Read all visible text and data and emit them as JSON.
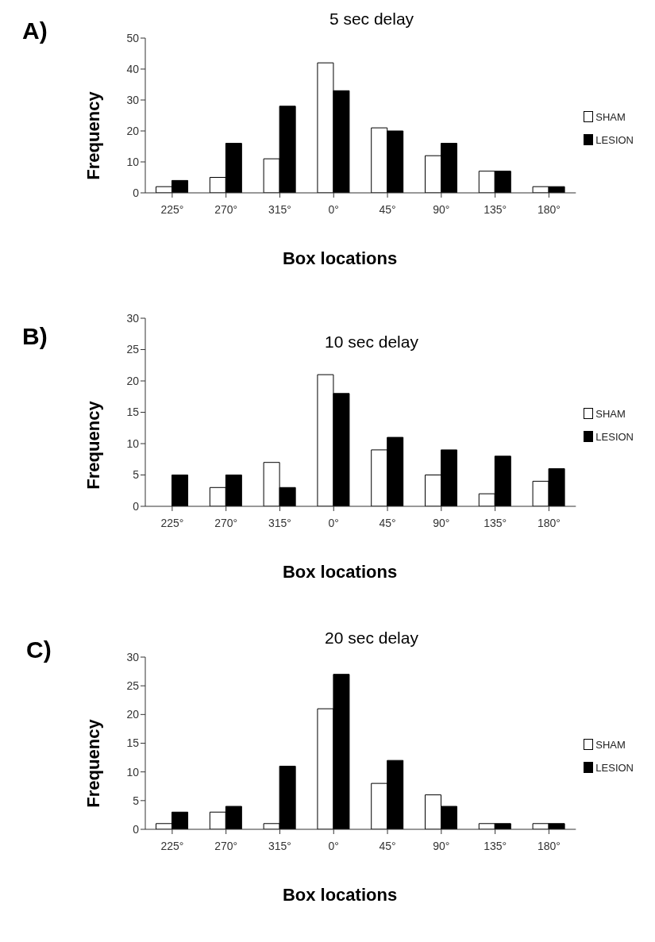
{
  "chart_data": [
    {
      "type": "bar",
      "title": "5 sec delay",
      "xlabel": "Box locations",
      "ylabel": "Frequency",
      "annotations": [
        "A)"
      ],
      "categories": [
        "225°",
        "270°",
        "315°",
        "0°",
        "45°",
        "90°",
        "135°",
        "180°"
      ],
      "series": [
        {
          "name": "SHAM",
          "color": "#ffffff",
          "values": [
            2,
            5,
            11,
            42,
            21,
            12,
            7,
            2
          ]
        },
        {
          "name": "LESION",
          "color": "#000000",
          "values": [
            4,
            16,
            28,
            33,
            20,
            16,
            7,
            2
          ]
        }
      ],
      "ylim": [
        0,
        50
      ],
      "yticks": [
        0,
        10,
        20,
        30,
        40,
        50
      ],
      "grid": false,
      "legend": "right"
    },
    {
      "type": "bar",
      "title": "10 sec delay",
      "xlabel": "Box locations",
      "ylabel": "Frequency",
      "annotations": [
        "B)"
      ],
      "categories": [
        "225°",
        "270°",
        "315°",
        "0°",
        "45°",
        "90°",
        "135°",
        "180°"
      ],
      "series": [
        {
          "name": "SHAM",
          "color": "#ffffff",
          "values": [
            0,
            3,
            7,
            21,
            9,
            5,
            2,
            4
          ]
        },
        {
          "name": "LESION",
          "color": "#000000",
          "values": [
            5,
            5,
            3,
            18,
            11,
            9,
            8,
            6
          ]
        }
      ],
      "ylim": [
        0,
        30
      ],
      "yticks": [
        0,
        5,
        10,
        15,
        20,
        25,
        30
      ],
      "grid": false,
      "legend": "right"
    },
    {
      "type": "bar",
      "title": "20 sec delay",
      "xlabel": "Box locations",
      "ylabel": "Frequency",
      "annotations": [
        "C)"
      ],
      "categories": [
        "225°",
        "270°",
        "315°",
        "0°",
        "45°",
        "90°",
        "135°",
        "180°"
      ],
      "series": [
        {
          "name": "SHAM",
          "color": "#ffffff",
          "values": [
            1,
            3,
            1,
            21,
            8,
            6,
            1,
            1
          ]
        },
        {
          "name": "LESION",
          "color": "#000000",
          "values": [
            3,
            4,
            11,
            27,
            12,
            4,
            1,
            1
          ]
        }
      ],
      "ylim": [
        0,
        30
      ],
      "yticks": [
        0,
        5,
        10,
        15,
        20,
        25,
        30
      ],
      "grid": false,
      "legend": "right"
    }
  ]
}
